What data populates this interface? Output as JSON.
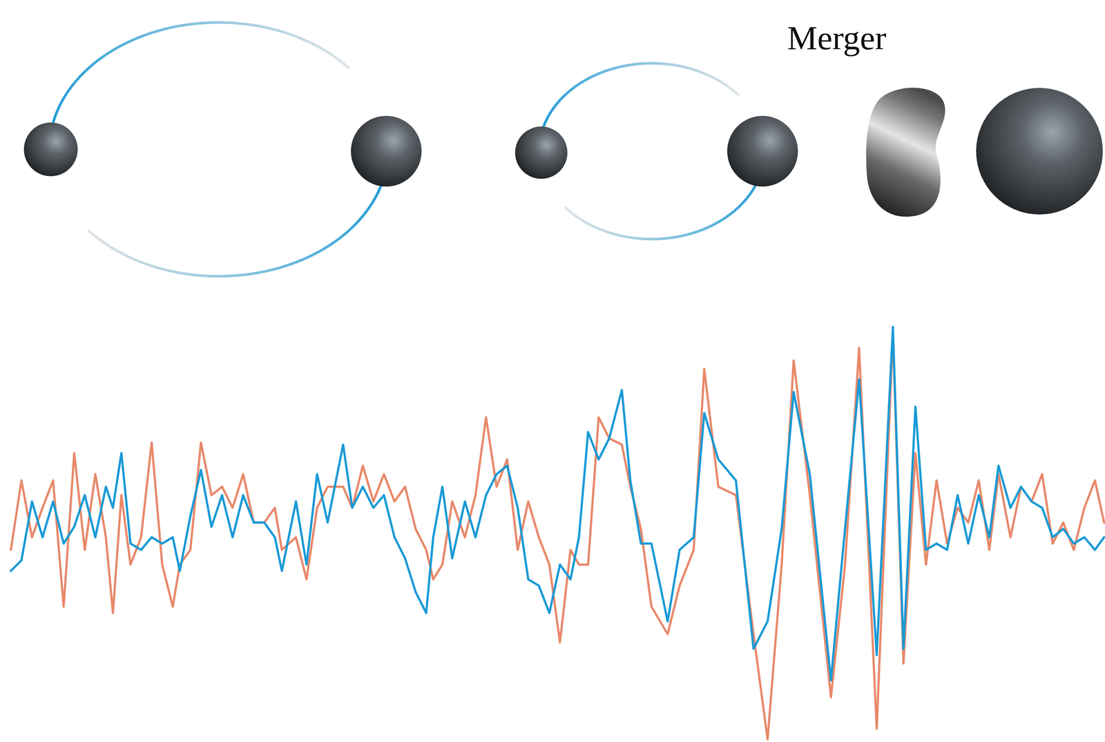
{
  "chart_data": {
    "type": "line",
    "annotations": [
      "Merger"
    ],
    "tick_labels": false,
    "grid": false,
    "xlim": [
      15,
      1568
    ],
    "ylim": [
      -10.3,
      9.3
    ],
    "x": [
      15,
      30,
      45,
      60,
      75,
      90,
      105,
      120,
      135,
      150,
      160,
      172,
      185,
      200,
      215,
      230,
      245,
      255,
      270,
      285,
      300,
      315,
      330,
      345,
      360,
      375,
      390,
      400,
      420,
      435,
      450,
      465,
      487,
      500,
      515,
      530,
      545,
      560,
      575,
      590,
      605,
      615,
      628,
      642,
      660,
      675,
      690,
      705,
      720,
      735,
      750,
      765,
      780,
      795,
      810,
      822,
      835,
      850,
      865,
      883,
      895,
      910,
      925,
      948,
      965,
      985,
      1000,
      1020,
      1045,
      1070,
      1090,
      1110,
      1127,
      1150,
      1180,
      1200,
      1220,
      1245,
      1268,
      1283,
      1300,
      1315,
      1330,
      1345,
      1360,
      1375,
      1390,
      1405,
      1418,
      1435,
      1450,
      1465,
      1480,
      1495,
      1510,
      1525,
      1540,
      1555,
      1568
    ],
    "series": [
      {
        "color": "#e8896b",
        "line_style": "solid",
        "values": [
          -1.3,
          2.0,
          -0.7,
          0.7,
          2.0,
          -4.0,
          3.3,
          -1.3,
          2.3,
          -0.7,
          -4.3,
          1.3,
          -2.0,
          -0.7,
          3.8,
          -2.0,
          -4.0,
          -2.0,
          -1.3,
          3.8,
          1.3,
          1.7,
          0.7,
          2.3,
          0,
          0,
          0.7,
          -1.3,
          -0.7,
          -2.7,
          0.7,
          1.7,
          1.7,
          0.7,
          2.7,
          1.0,
          2.3,
          1.0,
          1.7,
          -0.3,
          -1.3,
          -2.7,
          -2.0,
          1.0,
          -0.7,
          1.3,
          5.0,
          1.7,
          3.0,
          -1.3,
          1.0,
          -0.7,
          -2.0,
          -5.7,
          -1.3,
          -2.0,
          -2.0,
          5.0,
          4.0,
          3.7,
          1.7,
          -0.3,
          -4.0,
          -5.3,
          -3.0,
          -1.3,
          7.3,
          1.7,
          1.3,
          -5.3,
          -10.3,
          -2.0,
          7.7,
          1.3,
          -8.3,
          -2.0,
          8.3,
          -9.8,
          9.0,
          -6.7,
          3.3,
          -2.0,
          2.0,
          -1.0,
          0.7,
          0,
          2.0,
          -1.3,
          2.3,
          -0.7,
          1.7,
          1.0,
          2.3,
          -1.0,
          0,
          -1.3,
          0.7,
          2.0,
          0
        ]
      },
      {
        "color": "#1a9ad6",
        "line_style": "solid",
        "values": [
          -2.3,
          -1.8,
          1.0,
          -0.7,
          1.0,
          -1.0,
          -0.2,
          1.3,
          -0.7,
          1.7,
          0.7,
          3.3,
          -1.0,
          -1.3,
          -0.7,
          -1.0,
          -0.7,
          -2.3,
          0.3,
          2.5,
          -0.2,
          1.3,
          -0.7,
          1.3,
          0,
          0,
          -0.7,
          -2.3,
          1.0,
          -2.0,
          2.3,
          0,
          3.7,
          0.7,
          1.7,
          0.7,
          1.3,
          -0.7,
          -1.7,
          -3.3,
          -4.3,
          -0.7,
          1.7,
          -1.7,
          1.0,
          -0.7,
          1.3,
          2.3,
          2.7,
          0.7,
          -2.7,
          -3.0,
          -4.3,
          -2.0,
          -2.7,
          -0.7,
          4.3,
          3.0,
          4.0,
          6.3,
          2.0,
          -1.0,
          -1.0,
          -4.7,
          -1.3,
          -0.7,
          5.2,
          3.0,
          2.0,
          -6.0,
          -4.7,
          -0.3,
          6.2,
          2.3,
          -7.5,
          -0.3,
          6.8,
          -6.3,
          9.3,
          -6.0,
          5.5,
          -1.3,
          -1.0,
          -1.3,
          1.3,
          -1.0,
          1.3,
          -0.7,
          2.7,
          0.7,
          1.7,
          1.0,
          0.7,
          -0.7,
          -0.3,
          -1.0,
          -0.7,
          -1.3,
          -0.7
        ]
      }
    ]
  }
}
